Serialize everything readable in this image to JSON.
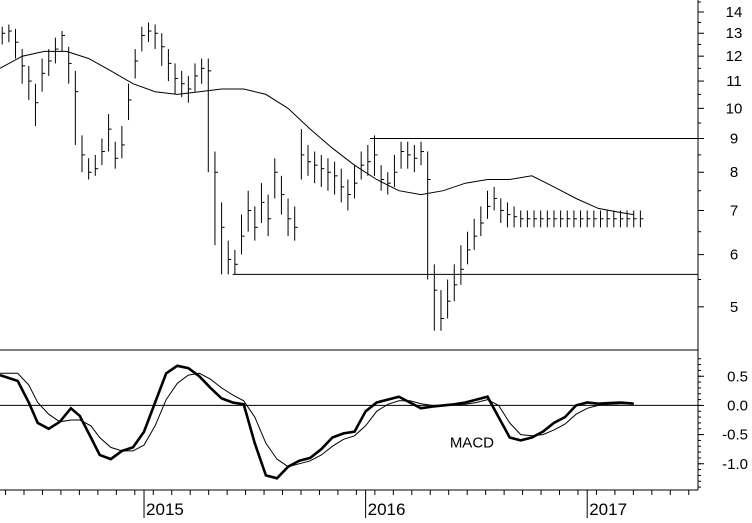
{
  "chart_data": [
    {
      "type": "line",
      "panel": "price",
      "scale": "log",
      "ylim": [
        4.3,
        14.6
      ],
      "yticks": [
        5,
        6,
        7,
        8,
        9,
        10,
        11,
        12,
        13,
        14
      ],
      "xlim": [
        2014.35,
        2017.5
      ],
      "xticks": [
        {
          "x": 2015,
          "label": "2015"
        },
        {
          "x": 2016,
          "label": "2016"
        },
        {
          "x": 2017,
          "label": "2017"
        }
      ],
      "grid": false,
      "series": [
        {
          "style": "ohlc-bars",
          "x": [
            2014.36,
            2014.39,
            2014.42,
            2014.45,
            2014.48,
            2014.51,
            2014.54,
            2014.57,
            2014.6,
            2014.63,
            2014.66,
            2014.69,
            2014.72,
            2014.75,
            2014.78,
            2014.81,
            2014.84,
            2014.87,
            2014.9,
            2014.93,
            2014.96,
            2014.99,
            2015.02,
            2015.05,
            2015.08,
            2015.11,
            2015.14,
            2015.17,
            2015.2,
            2015.23,
            2015.26,
            2015.29,
            2015.32,
            2015.35,
            2015.38,
            2015.41,
            2015.44,
            2015.47,
            2015.5,
            2015.53,
            2015.56,
            2015.59,
            2015.62,
            2015.65,
            2015.68,
            2015.71,
            2015.74,
            2015.77,
            2015.8,
            2015.83,
            2015.86,
            2015.89,
            2015.92,
            2015.95,
            2015.98,
            2016.01,
            2016.04,
            2016.07,
            2016.1,
            2016.13,
            2016.16,
            2016.19,
            2016.22,
            2016.25,
            2016.28,
            2016.31,
            2016.34,
            2016.37,
            2016.4,
            2016.43,
            2016.46,
            2016.49,
            2016.52,
            2016.55,
            2016.58,
            2016.61,
            2016.64,
            2016.67,
            2016.7,
            2016.73,
            2016.76,
            2016.79,
            2016.82,
            2016.85,
            2016.88,
            2016.91,
            2016.94,
            2016.97,
            2017.0,
            2017.03,
            2017.06,
            2017.09,
            2017.12,
            2017.15,
            2017.18,
            2017.21,
            2017.24
          ],
          "close": [
            13.0,
            13.1,
            12.6,
            11.6,
            11.0,
            10.2,
            11.3,
            11.8,
            12.3,
            12.9,
            11.7,
            10.6,
            8.5,
            8.0,
            8.1,
            8.6,
            9.3,
            8.4,
            8.8,
            10.3,
            11.8,
            12.9,
            13.1,
            13.0,
            12.4,
            11.7,
            11.1,
            10.9,
            10.7,
            11.2,
            11.5,
            11.4,
            8.0,
            6.6,
            5.9,
            5.8,
            6.4,
            7.0,
            6.6,
            7.2,
            6.8,
            8.0,
            7.4,
            6.8,
            6.6,
            8.5,
            8.3,
            8.2,
            8.1,
            8.0,
            7.9,
            7.6,
            7.4,
            7.7,
            8.2,
            8.3,
            8.5,
            7.8,
            7.7,
            8.0,
            8.6,
            8.5,
            8.4,
            8.6,
            7.8,
            5.3,
            4.8,
            5.1,
            5.4,
            5.7,
            6.1,
            6.4,
            6.7,
            7.1,
            7.3,
            7.0,
            6.9,
            6.85,
            6.8,
            6.8,
            6.8,
            6.8,
            6.8,
            6.8,
            6.8,
            6.8,
            6.8,
            6.8,
            6.8,
            6.8,
            6.8,
            6.8,
            6.8,
            6.8,
            6.8,
            6.8,
            6.8
          ],
          "low": [
            12.5,
            12.6,
            11.9,
            10.9,
            10.3,
            9.4,
            10.6,
            11.2,
            11.7,
            12.2,
            10.9,
            8.8,
            8.0,
            7.8,
            7.9,
            8.2,
            8.6,
            8.1,
            8.4,
            9.6,
            11.1,
            12.2,
            12.6,
            12.3,
            11.6,
            11.0,
            10.5,
            10.4,
            10.2,
            10.6,
            10.9,
            8.0,
            6.2,
            5.6,
            5.6,
            5.6,
            6.0,
            6.5,
            6.3,
            6.7,
            6.4,
            7.3,
            6.9,
            6.4,
            6.3,
            7.8,
            7.9,
            7.7,
            7.6,
            7.5,
            7.4,
            7.2,
            7.0,
            7.3,
            7.8,
            7.9,
            7.9,
            7.5,
            7.4,
            7.6,
            8.1,
            8.1,
            8.0,
            8.2,
            5.5,
            4.6,
            4.6,
            4.8,
            5.1,
            5.4,
            5.8,
            6.1,
            6.4,
            6.8,
            7.0,
            6.7,
            6.6,
            6.6,
            6.6,
            6.6,
            6.6,
            6.6,
            6.6,
            6.6,
            6.6,
            6.6,
            6.6,
            6.6,
            6.6,
            6.6,
            6.6,
            6.6,
            6.6,
            6.6,
            6.6,
            6.6,
            6.6
          ],
          "high": [
            13.3,
            13.4,
            13.2,
            12.3,
            11.6,
            10.9,
            11.9,
            12.3,
            12.8,
            13.1,
            12.4,
            11.4,
            9.1,
            8.4,
            8.5,
            9.0,
            9.8,
            8.9,
            9.4,
            10.9,
            12.3,
            13.3,
            13.5,
            13.4,
            13.0,
            12.3,
            11.7,
            11.4,
            11.2,
            11.7,
            11.9,
            11.9,
            8.6,
            7.2,
            6.3,
            6.1,
            6.9,
            7.5,
            7.1,
            7.7,
            7.4,
            8.4,
            7.9,
            7.3,
            7.1,
            9.3,
            8.8,
            8.6,
            8.5,
            8.4,
            8.3,
            8.1,
            7.8,
            8.2,
            8.6,
            8.8,
            9.1,
            8.2,
            8.0,
            8.5,
            8.9,
            8.9,
            8.8,
            8.9,
            8.6,
            5.8,
            5.3,
            5.5,
            5.8,
            6.2,
            6.5,
            6.8,
            7.1,
            7.5,
            7.6,
            7.3,
            7.2,
            7.1,
            7.0,
            7.0,
            7.0,
            7.0,
            7.0,
            7.0,
            7.0,
            7.0,
            7.0,
            7.0,
            7.0,
            7.0,
            7.0,
            7.0,
            7.0,
            7.0,
            7.0,
            7.0,
            7.0
          ]
        },
        {
          "style": "moving-average",
          "x": [
            2014.35,
            2014.45,
            2014.55,
            2014.65,
            2014.75,
            2014.85,
            2014.95,
            2015.05,
            2015.15,
            2015.25,
            2015.35,
            2015.45,
            2015.55,
            2015.65,
            2015.75,
            2015.85,
            2015.95,
            2016.05,
            2016.15,
            2016.25,
            2016.35,
            2016.45,
            2016.55,
            2016.65,
            2016.75,
            2016.85,
            2016.95,
            2017.05,
            2017.15,
            2017.21
          ],
          "values": [
            11.5,
            12.0,
            12.2,
            12.2,
            11.9,
            11.4,
            10.9,
            10.6,
            10.5,
            10.6,
            10.7,
            10.7,
            10.5,
            10.0,
            9.3,
            8.7,
            8.2,
            7.8,
            7.5,
            7.4,
            7.5,
            7.7,
            7.8,
            7.8,
            7.9,
            7.6,
            7.3,
            7.05,
            6.95,
            6.9
          ]
        }
      ],
      "annotations": [
        {
          "type": "hline",
          "y": 9.0,
          "x_from": 2016.02,
          "x_to": 2017.5
        },
        {
          "type": "hline",
          "y": 5.6,
          "x_from": 2015.4,
          "x_to": 2017.5
        }
      ]
    },
    {
      "type": "line",
      "panel": "indicator",
      "ylim": [
        -1.45,
        0.95
      ],
      "yticks": [
        {
          "v": 0.5,
          "label": "0.5"
        },
        {
          "v": 0.0,
          "label": "0.0"
        },
        {
          "v": -0.5,
          "label": "-0.5"
        },
        {
          "v": -1.0,
          "label": "-1.0"
        }
      ],
      "xlim": [
        2014.35,
        2017.5
      ],
      "zero_line": true,
      "annotations": [
        {
          "type": "text",
          "text": "MACD",
          "x": 2016.38,
          "y": -0.72
        }
      ],
      "series": [
        {
          "style": "thick",
          "x": [
            2014.35,
            2014.43,
            2014.48,
            2014.52,
            2014.57,
            2014.62,
            2014.67,
            2014.71,
            2014.76,
            2014.8,
            2014.85,
            2014.9,
            2014.95,
            2015.0,
            2015.05,
            2015.1,
            2015.15,
            2015.2,
            2015.25,
            2015.3,
            2015.35,
            2015.4,
            2015.45,
            2015.5,
            2015.55,
            2015.6,
            2015.65,
            2015.7,
            2015.75,
            2015.8,
            2015.85,
            2015.9,
            2015.95,
            2016.0,
            2016.05,
            2016.1,
            2016.15,
            2016.2,
            2016.25,
            2016.3,
            2016.35,
            2016.4,
            2016.45,
            2016.5,
            2016.55,
            2016.6,
            2016.65,
            2016.7,
            2016.75,
            2016.8,
            2016.85,
            2016.9,
            2016.95,
            2017.0,
            2017.05,
            2017.1,
            2017.15,
            2017.18,
            2017.21
          ],
          "values": [
            0.52,
            0.42,
            0.05,
            -0.3,
            -0.4,
            -0.28,
            -0.05,
            -0.18,
            -0.55,
            -0.85,
            -0.92,
            -0.78,
            -0.72,
            -0.45,
            0.05,
            0.55,
            0.68,
            0.64,
            0.5,
            0.3,
            0.12,
            0.05,
            0.02,
            -0.65,
            -1.2,
            -1.25,
            -1.05,
            -0.95,
            -0.9,
            -0.75,
            -0.55,
            -0.48,
            -0.45,
            -0.1,
            0.05,
            0.1,
            0.15,
            0.05,
            -0.05,
            -0.02,
            0.0,
            0.02,
            0.05,
            0.1,
            0.15,
            -0.2,
            -0.55,
            -0.6,
            -0.55,
            -0.45,
            -0.3,
            -0.2,
            0.0,
            0.05,
            0.03,
            0.04,
            0.05,
            0.04,
            0.03
          ]
        },
        {
          "style": "thin",
          "x": [
            2014.35,
            2014.43,
            2014.48,
            2014.52,
            2014.57,
            2014.62,
            2014.67,
            2014.71,
            2014.76,
            2014.8,
            2014.85,
            2014.9,
            2014.95,
            2015.0,
            2015.05,
            2015.1,
            2015.15,
            2015.2,
            2015.25,
            2015.3,
            2015.35,
            2015.4,
            2015.45,
            2015.5,
            2015.55,
            2015.6,
            2015.65,
            2015.7,
            2015.75,
            2015.8,
            2015.85,
            2015.9,
            2015.95,
            2016.0,
            2016.05,
            2016.1,
            2016.15,
            2016.2,
            2016.25,
            2016.3,
            2016.35,
            2016.4,
            2016.45,
            2016.5,
            2016.55,
            2016.6,
            2016.65,
            2016.7,
            2016.75,
            2016.8,
            2016.85,
            2016.9,
            2016.95,
            2017.0,
            2017.05,
            2017.1,
            2017.15,
            2017.18,
            2017.21
          ],
          "values": [
            0.55,
            0.55,
            0.35,
            0.05,
            -0.15,
            -0.28,
            -0.25,
            -0.25,
            -0.35,
            -0.55,
            -0.72,
            -0.78,
            -0.78,
            -0.68,
            -0.35,
            0.1,
            0.38,
            0.52,
            0.55,
            0.45,
            0.3,
            0.18,
            0.08,
            -0.2,
            -0.65,
            -0.92,
            -1.05,
            -1.0,
            -0.95,
            -0.85,
            -0.7,
            -0.58,
            -0.52,
            -0.35,
            -0.1,
            0.02,
            0.08,
            0.08,
            0.03,
            0.0,
            0.0,
            0.01,
            0.02,
            0.05,
            0.1,
            0.0,
            -0.3,
            -0.5,
            -0.52,
            -0.5,
            -0.42,
            -0.32,
            -0.15,
            -0.05,
            0.0,
            0.02,
            0.03,
            0.03,
            0.03
          ]
        }
      ]
    }
  ]
}
